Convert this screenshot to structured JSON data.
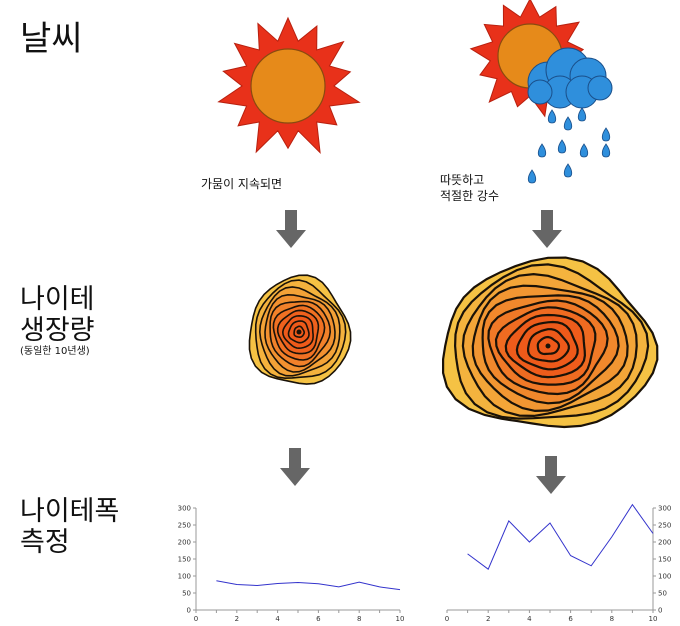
{
  "rows": {
    "weather": {
      "title": "날씨"
    },
    "growth": {
      "title_line1": "나이테",
      "title_line2": "생장량",
      "subtitle": "(동일한 10년생)"
    },
    "measure": {
      "title_line1": "나이테폭",
      "title_line2": "측정"
    }
  },
  "scenarios": {
    "drought": {
      "caption": "가뭄이 지속되면",
      "icon": "sun-icon"
    },
    "warm_rain": {
      "caption_line1": "따뜻하고",
      "caption_line2": "적절한 강수",
      "icon": "sun-cloud-rain-icon"
    }
  },
  "colors": {
    "sun_ray": "#e8311a",
    "sun_core": "#e68a1a",
    "cloud": "#2f8fdc",
    "ring_outer": "#f5c244",
    "ring_inner": "#ee5a1a",
    "arrow": "#666666",
    "series_line": "#3333cc"
  },
  "chart_data": [
    {
      "type": "line",
      "x": [
        1,
        2,
        3,
        4,
        5,
        6,
        7,
        8,
        9,
        10
      ],
      "series": [
        {
          "values": [
            86,
            75,
            72,
            78,
            81,
            77,
            68,
            82,
            68,
            60
          ]
        }
      ],
      "ylim": [
        0,
        300
      ],
      "xlim": [
        0,
        10
      ],
      "yticks": [
        "0",
        "50",
        "100",
        "150",
        "200",
        "250",
        "300"
      ],
      "xticks": [
        "0",
        "2",
        "4",
        "6",
        "8",
        "10"
      ],
      "y_axis_side": "left"
    },
    {
      "type": "line",
      "x": [
        1,
        2,
        3,
        4,
        5,
        6,
        7,
        8,
        9,
        10
      ],
      "series": [
        {
          "values": [
            165,
            120,
            262,
            200,
            256,
            160,
            130,
            215,
            310,
            225
          ]
        }
      ],
      "ylim": [
        0,
        300
      ],
      "xlim": [
        0,
        10
      ],
      "yticks": [
        "0",
        "50",
        "100",
        "150",
        "200",
        "250",
        "300"
      ],
      "xticks": [
        "0",
        "2",
        "4",
        "6",
        "8",
        "10"
      ],
      "y_axis_side": "right"
    }
  ]
}
